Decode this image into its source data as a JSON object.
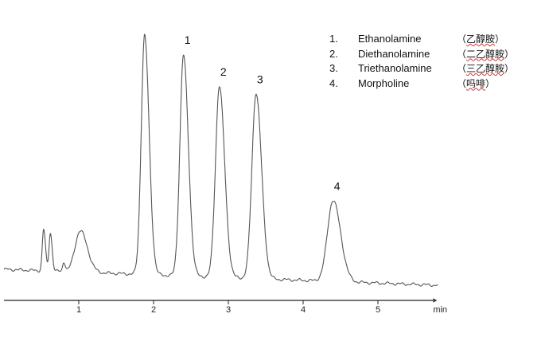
{
  "chart_data": {
    "type": "line",
    "title": "",
    "xlabel": "min",
    "ylabel": "",
    "xlim": [
      0,
      5.8
    ],
    "xticks": [
      1,
      2,
      3,
      4,
      5
    ],
    "grid": false,
    "legend_position": "top-right",
    "line_color": "#555555",
    "baseline_drift": {
      "start": 2,
      "end": -18
    },
    "peaks": [
      {
        "label": "",
        "rt": 0.53,
        "height": 52,
        "sigma": 0.018
      },
      {
        "label": "",
        "rt": 0.62,
        "height": 48,
        "sigma": 0.018
      },
      {
        "label": "",
        "rt": 0.8,
        "height": 12,
        "sigma": 0.015
      },
      {
        "label": "",
        "rt": 1.02,
        "height": 52,
        "sigma": 0.07
      },
      {
        "label": "",
        "rt": 1.88,
        "height": 300,
        "sigma": 0.045
      },
      {
        "label": "1",
        "rt": 2.4,
        "height": 277,
        "sigma": 0.048
      },
      {
        "label": "2",
        "rt": 2.88,
        "height": 240,
        "sigma": 0.052
      },
      {
        "label": "3",
        "rt": 3.37,
        "height": 233,
        "sigma": 0.055
      },
      {
        "label": "4",
        "rt": 4.4,
        "height": 102,
        "sigma": 0.075
      }
    ],
    "legend": [
      {
        "num": "1.",
        "name": "Ethanolamine",
        "cn": "乙醇胺"
      },
      {
        "num": "2.",
        "name": "Diethanolamine",
        "cn": "二乙醇胺"
      },
      {
        "num": "3.",
        "name": "Triethanolamine",
        "cn": "三乙醇胺"
      },
      {
        "num": "4.",
        "name": "Morpholine",
        "cn": "吗啡"
      }
    ]
  }
}
